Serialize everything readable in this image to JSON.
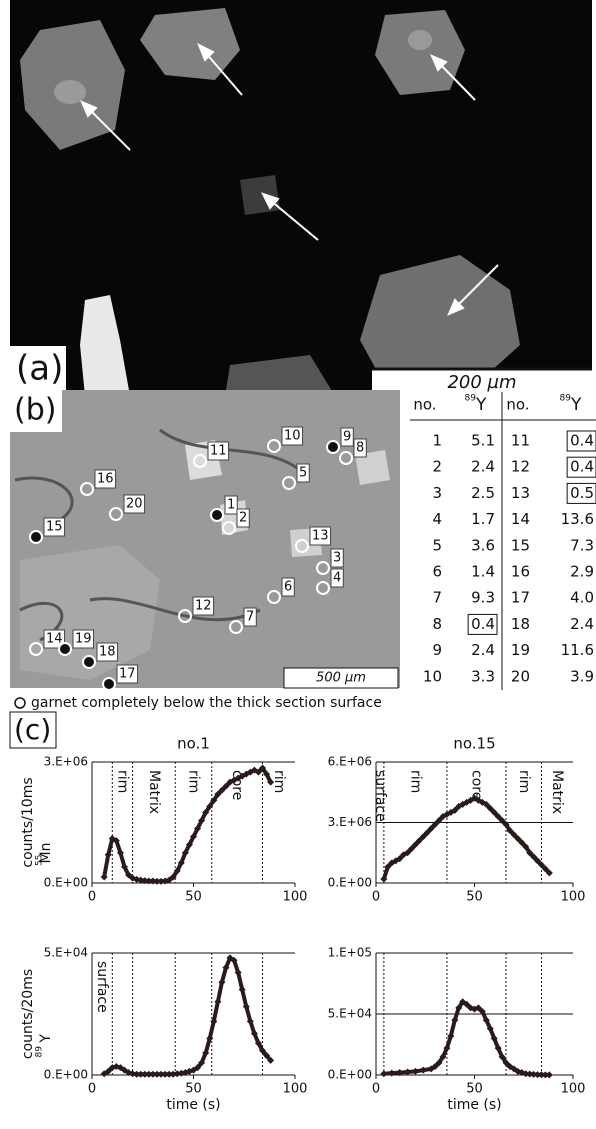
{
  "panel_a": {
    "label": "(a)",
    "scale_bar": "200 µm"
  },
  "panel_b": {
    "label": "(b)",
    "scale_bar": "500 µm",
    "points": [
      {
        "label": "1",
        "below_surface": false
      },
      {
        "label": "2",
        "below_surface": true
      },
      {
        "label": "3",
        "below_surface": true
      },
      {
        "label": "4",
        "below_surface": true
      },
      {
        "label": "5",
        "below_surface": true
      },
      {
        "label": "6",
        "below_surface": true
      },
      {
        "label": "7",
        "below_surface": true
      },
      {
        "label": "8",
        "below_surface": true
      },
      {
        "label": "9",
        "below_surface": false
      },
      {
        "label": "10",
        "below_surface": true
      },
      {
        "label": "11",
        "below_surface": true
      },
      {
        "label": "12",
        "below_surface": true
      },
      {
        "label": "13",
        "below_surface": true
      },
      {
        "label": "14",
        "below_surface": true
      },
      {
        "label": "15",
        "below_surface": false
      },
      {
        "label": "16",
        "below_surface": true
      },
      {
        "label": "17",
        "below_surface": false
      },
      {
        "label": "18",
        "below_surface": false
      },
      {
        "label": "19",
        "below_surface": false
      },
      {
        "label": "20",
        "below_surface": true
      }
    ],
    "legend": "garnet completely below the thick section surface"
  },
  "table": {
    "header": [
      "no.",
      {
        "sup": "89",
        "base": "Y"
      },
      "no.",
      {
        "sup": "89",
        "base": "Y"
      }
    ],
    "entries": [
      {
        "no": "1",
        "value": "5.1",
        "boxed": false
      },
      {
        "no": "2",
        "value": "2.4",
        "boxed": false
      },
      {
        "no": "3",
        "value": "2.5",
        "boxed": false
      },
      {
        "no": "4",
        "value": "1.7",
        "boxed": false
      },
      {
        "no": "5",
        "value": "3.6",
        "boxed": false
      },
      {
        "no": "6",
        "value": "1.4",
        "boxed": false
      },
      {
        "no": "7",
        "value": "9.3",
        "boxed": false
      },
      {
        "no": "8",
        "value": "0.4",
        "boxed": true
      },
      {
        "no": "9",
        "value": "2.4",
        "boxed": false
      },
      {
        "no": "10",
        "value": "3.3",
        "boxed": false
      },
      {
        "no": "11",
        "value": "0.4",
        "boxed": true
      },
      {
        "no": "12",
        "value": "0.4",
        "boxed": true
      },
      {
        "no": "13",
        "value": "0.5",
        "boxed": true
      },
      {
        "no": "14",
        "value": "13.6",
        "boxed": false
      },
      {
        "no": "15",
        "value": "7.3",
        "boxed": false
      },
      {
        "no": "16",
        "value": "2.9",
        "boxed": false
      },
      {
        "no": "17",
        "value": "4.0",
        "boxed": false
      },
      {
        "no": "18",
        "value": "2.4",
        "boxed": false
      },
      {
        "no": "19",
        "value": "11.6",
        "boxed": false
      },
      {
        "no": "20",
        "value": "3.9",
        "boxed": false
      }
    ]
  },
  "panel_c": {
    "label": "(c)"
  },
  "chart_data": [
    {
      "type": "scatter",
      "title": "no.1",
      "y_label": "counts/10ms",
      "y_label_sup": "55",
      "y_label_element": "Mn",
      "xlim": [
        0,
        100
      ],
      "xticks": [
        0,
        50,
        100
      ],
      "ylim": [
        0,
        3000000
      ],
      "yticks": [
        {
          "value": 0,
          "label": "0.E+00"
        },
        {
          "value": 3000000,
          "label": "3.E+06"
        }
      ],
      "grid": true,
      "dividers": [
        10,
        20,
        41,
        59,
        84
      ],
      "region_labels": [
        null,
        "rim",
        "Matrix",
        "rim",
        "core",
        "rim"
      ],
      "color": "#2a1a1a",
      "x": [
        6,
        8,
        10,
        12,
        14,
        16,
        18,
        20,
        22,
        24,
        26,
        28,
        30,
        32,
        34,
        36,
        38,
        40,
        42,
        44,
        46,
        48,
        50,
        52,
        54,
        56,
        58,
        60,
        62,
        64,
        66,
        68,
        70,
        72,
        74,
        76,
        78,
        80,
        82,
        84,
        86,
        88
      ],
      "values": [
        150000,
        700000,
        1100000,
        1050000,
        750000,
        400000,
        200000,
        120000,
        90000,
        70000,
        60000,
        50000,
        50000,
        40000,
        40000,
        50000,
        70000,
        150000,
        300000,
        500000,
        750000,
        950000,
        1150000,
        1350000,
        1550000,
        1750000,
        1900000,
        2050000,
        2200000,
        2300000,
        2400000,
        2500000,
        2550000,
        2600000,
        2650000,
        2700000,
        2750000,
        2800000,
        2750000,
        2850000,
        2700000,
        2500000
      ]
    },
    {
      "type": "scatter",
      "title": "no.15",
      "xlim": [
        0,
        100
      ],
      "xticks": [
        0,
        50,
        100
      ],
      "ylim": [
        0,
        6000000
      ],
      "yticks": [
        {
          "value": 0,
          "label": "0.E+00"
        },
        {
          "value": 3000000,
          "label": "3.E+06"
        },
        {
          "value": 6000000,
          "label": "6.E+06"
        }
      ],
      "grid": true,
      "dividers": [
        4,
        36,
        66,
        84
      ],
      "region_labels": [
        "surface",
        "rim",
        "core",
        "rim",
        "Matrix"
      ],
      "color": "#2a1a1a",
      "x": [
        4,
        6,
        8,
        10,
        12,
        14,
        16,
        18,
        20,
        22,
        24,
        26,
        28,
        30,
        32,
        34,
        36,
        38,
        40,
        42,
        44,
        46,
        48,
        50,
        52,
        54,
        56,
        58,
        60,
        62,
        64,
        66,
        68,
        70,
        72,
        74,
        76,
        78,
        80,
        82,
        84,
        86,
        88
      ],
      "values": [
        200000,
        800000,
        1000000,
        1100000,
        1200000,
        1400000,
        1500000,
        1700000,
        1900000,
        2100000,
        2300000,
        2500000,
        2700000,
        2900000,
        3100000,
        3300000,
        3400000,
        3500000,
        3600000,
        3800000,
        3900000,
        4000000,
        4100000,
        4200000,
        4100000,
        4000000,
        3900000,
        3700000,
        3500000,
        3300000,
        3100000,
        2900000,
        2600000,
        2400000,
        2200000,
        2000000,
        1800000,
        1500000,
        1300000,
        1100000,
        900000,
        700000,
        500000
      ]
    },
    {
      "type": "scatter",
      "y_label": "counts/20ms",
      "y_label_sup": "89",
      "y_label_element": "Y",
      "x_label": "time (s)",
      "xlim": [
        0,
        100
      ],
      "xticks": [
        0,
        50,
        100
      ],
      "ylim": [
        0,
        50000
      ],
      "yticks": [
        {
          "value": 0,
          "label": "0.E+00"
        },
        {
          "value": 50000,
          "label": "5.E+04"
        }
      ],
      "grid": true,
      "dividers": [
        10,
        20,
        41,
        59,
        84
      ],
      "region_labels": [
        "surface",
        null,
        null,
        null,
        null,
        null
      ],
      "color": "#2a1a1a",
      "x": [
        6,
        8,
        10,
        12,
        14,
        16,
        18,
        20,
        22,
        24,
        26,
        28,
        30,
        32,
        34,
        36,
        38,
        40,
        42,
        44,
        46,
        48,
        50,
        52,
        54,
        56,
        58,
        60,
        62,
        64,
        66,
        68,
        70,
        72,
        74,
        76,
        78,
        80,
        82,
        84,
        86,
        88
      ],
      "values": [
        500,
        1500,
        3000,
        3500,
        3000,
        2000,
        1000,
        500,
        300,
        300,
        300,
        300,
        300,
        300,
        300,
        300,
        300,
        300,
        500,
        700,
        1000,
        1500,
        2000,
        3000,
        5000,
        9000,
        15000,
        22000,
        30000,
        38000,
        44000,
        48000,
        47000,
        42000,
        35000,
        28000,
        22000,
        17000,
        13000,
        10000,
        8000,
        6000
      ]
    },
    {
      "type": "scatter",
      "x_label": "time (s)",
      "xlim": [
        0,
        100
      ],
      "xticks": [
        0,
        50,
        100
      ],
      "ylim": [
        0,
        100000
      ],
      "yticks": [
        {
          "value": 0,
          "label": "0.E+00"
        },
        {
          "value": 50000,
          "label": "5.E+04"
        },
        {
          "value": 100000,
          "label": "1.E+05"
        }
      ],
      "grid": true,
      "dividers": [
        4,
        36,
        66,
        84
      ],
      "color": "#2a1a1a",
      "x": [
        4,
        8,
        12,
        16,
        20,
        24,
        28,
        30,
        32,
        34,
        36,
        38,
        40,
        42,
        44,
        46,
        48,
        50,
        52,
        54,
        56,
        58,
        60,
        62,
        64,
        66,
        68,
        70,
        72,
        74,
        76,
        78,
        80,
        82,
        84,
        86,
        88
      ],
      "values": [
        1000,
        1500,
        2000,
        2500,
        3000,
        4000,
        5000,
        7000,
        10000,
        15000,
        22000,
        32000,
        45000,
        55000,
        60000,
        58000,
        55000,
        54000,
        55000,
        52000,
        45000,
        38000,
        30000,
        22000,
        15000,
        10000,
        7000,
        5000,
        3000,
        2000,
        1000,
        800,
        500,
        300,
        200,
        100,
        100
      ]
    }
  ]
}
